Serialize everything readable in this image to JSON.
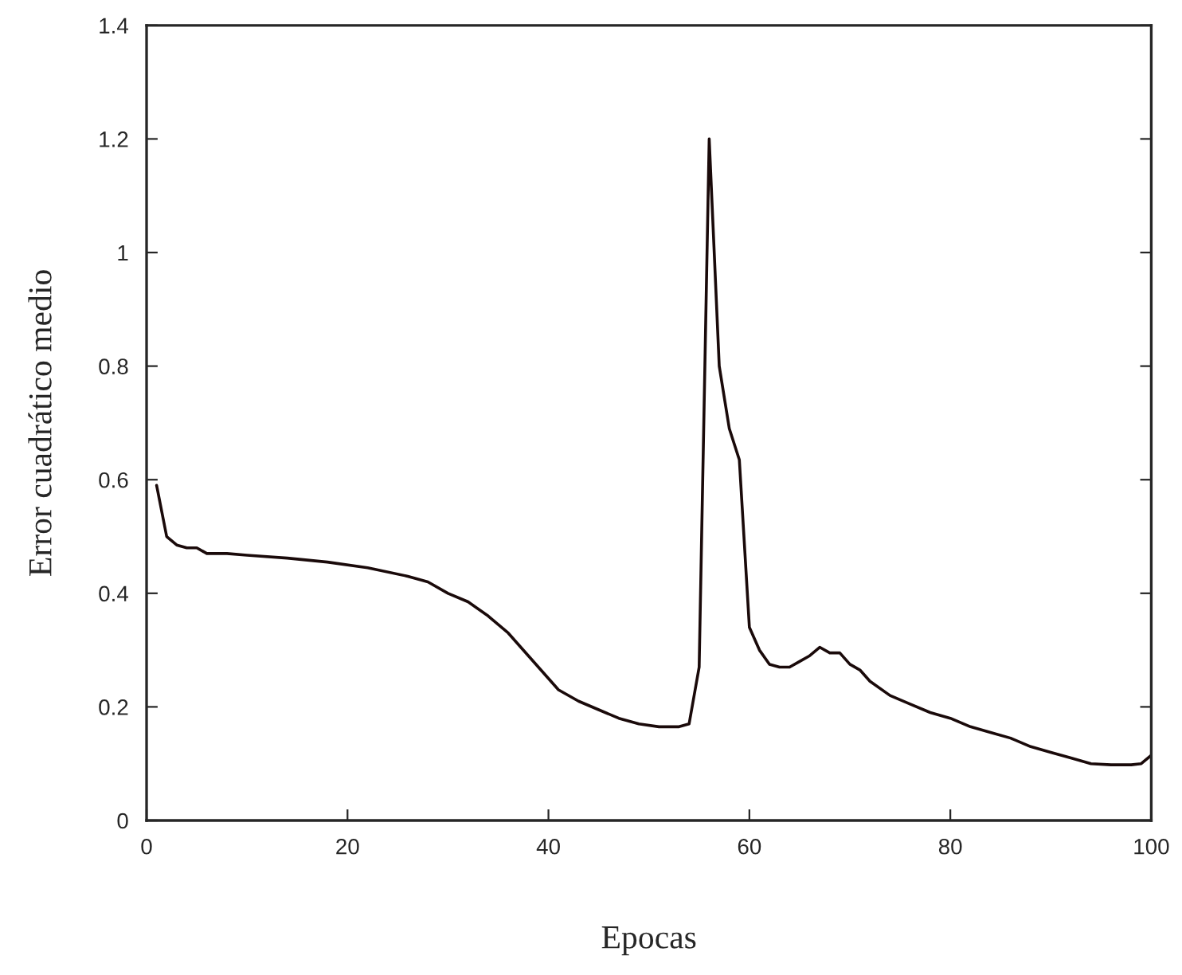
{
  "chart_data": {
    "type": "line",
    "xlabel": "Epocas",
    "ylabel": "Error cuadrático medio",
    "xlim": [
      0,
      100
    ],
    "ylim": [
      0,
      1.4
    ],
    "xticks": [
      0,
      20,
      40,
      60,
      80,
      100
    ],
    "yticks": [
      0,
      0.2,
      0.4,
      0.6,
      0.8,
      1,
      1.2,
      1.4
    ],
    "grid": false,
    "marker": "none",
    "line_style": "solid",
    "series": [
      {
        "color": "#1a0a0a",
        "x": [
          1,
          2,
          3,
          4,
          5,
          6,
          8,
          10,
          14,
          18,
          22,
          26,
          28,
          30,
          32,
          34,
          36,
          38,
          40,
          41,
          43,
          45,
          47,
          49,
          51,
          53,
          54,
          55,
          56,
          57,
          58,
          59,
          60,
          61,
          62,
          63,
          64,
          65,
          66,
          67,
          68,
          69,
          70,
          71,
          72,
          74,
          76,
          78,
          80,
          82,
          84,
          86,
          88,
          90,
          92,
          94,
          96,
          98,
          99,
          100
        ],
        "values": [
          0.59,
          0.5,
          0.485,
          0.48,
          0.48,
          0.47,
          0.47,
          0.467,
          0.462,
          0.455,
          0.445,
          0.43,
          0.42,
          0.4,
          0.385,
          0.36,
          0.33,
          0.29,
          0.25,
          0.23,
          0.21,
          0.195,
          0.18,
          0.17,
          0.165,
          0.165,
          0.17,
          0.27,
          1.2,
          0.8,
          0.69,
          0.635,
          0.34,
          0.3,
          0.275,
          0.27,
          0.27,
          0.28,
          0.29,
          0.305,
          0.295,
          0.295,
          0.275,
          0.265,
          0.245,
          0.22,
          0.205,
          0.19,
          0.18,
          0.165,
          0.155,
          0.145,
          0.13,
          0.12,
          0.11,
          0.1,
          0.098,
          0.098,
          0.1,
          0.115
        ]
      }
    ]
  }
}
